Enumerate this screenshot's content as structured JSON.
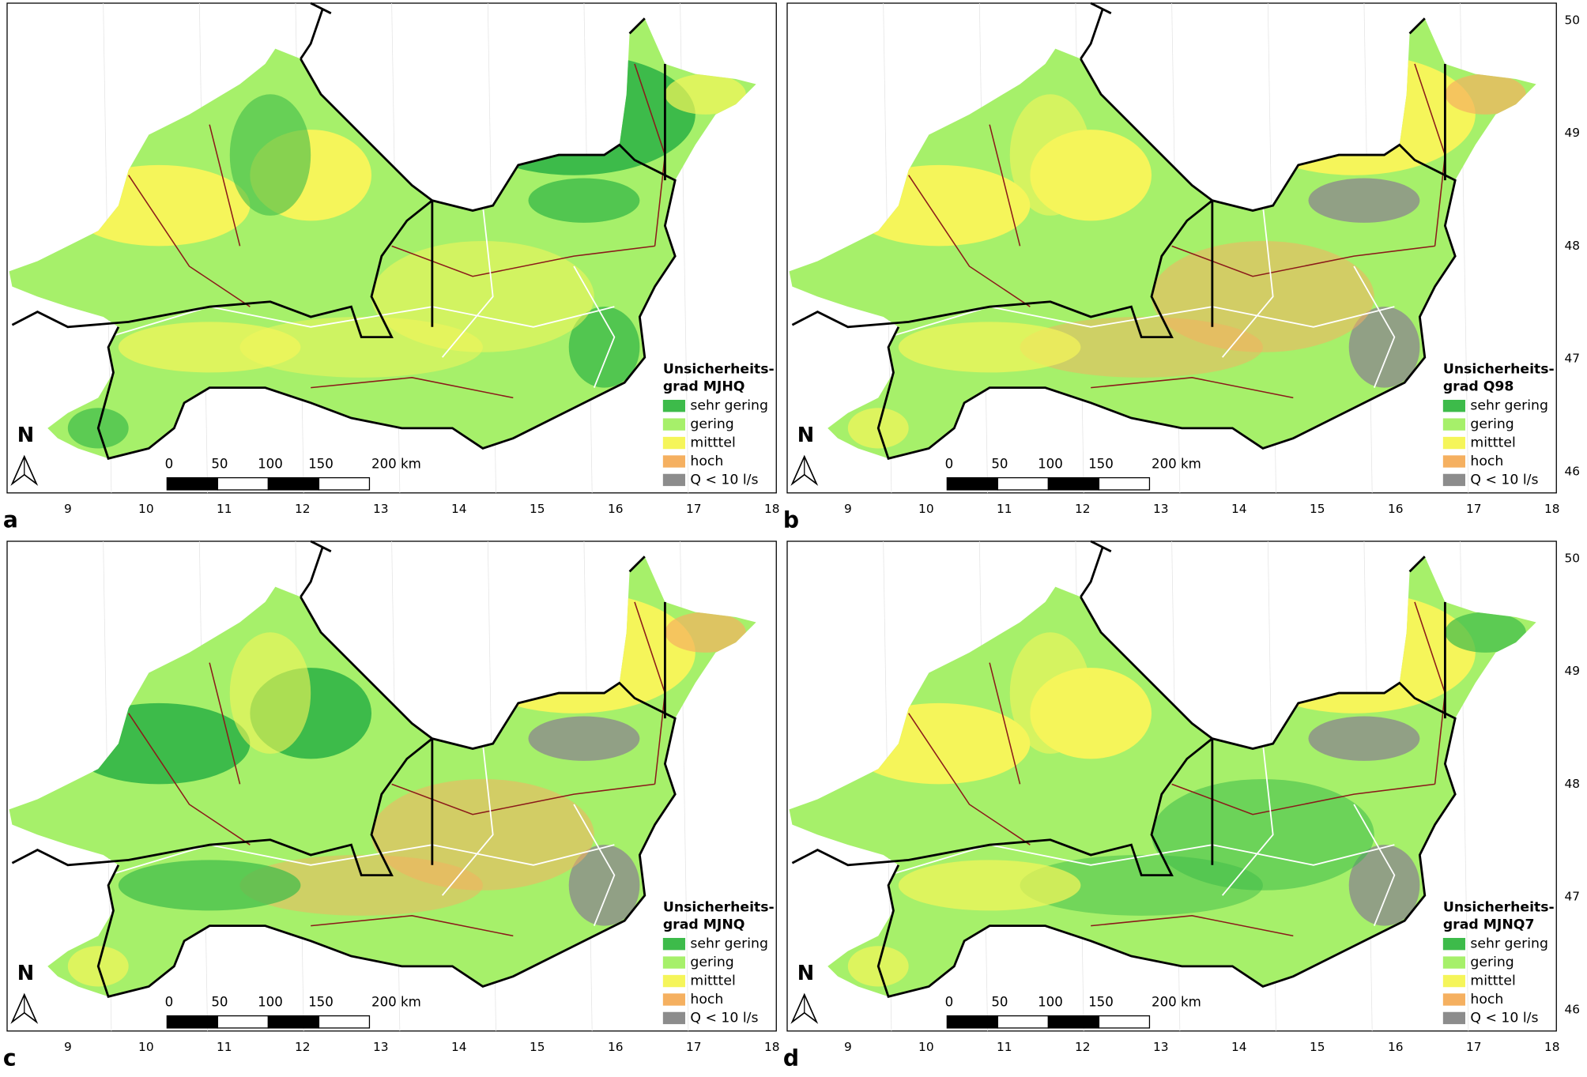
{
  "panels": [
    {
      "letter": "a",
      "legend_title": [
        "Unsicherheits-",
        "grad MJHQ"
      ]
    },
    {
      "letter": "b",
      "legend_title": [
        "Unsicherheits-",
        "grad Q98"
      ]
    },
    {
      "letter": "c",
      "legend_title": [
        "Unsicherheits-",
        "grad MJNQ"
      ]
    },
    {
      "letter": "d",
      "legend_title": [
        "Unsicherheits-",
        "grad MJNQ7"
      ]
    }
  ],
  "legend_items": [
    "sehr gering",
    "gering",
    "mitttel",
    "hoch",
    "Q < 10 l/s"
  ],
  "legend_colors": [
    "#3dbb4a",
    "#a6f06a",
    "#f5f55a",
    "#f5b060",
    "#8c8c8c"
  ],
  "lon_ticks": [
    9,
    10,
    11,
    12,
    13,
    14,
    15,
    16,
    17,
    18
  ],
  "lat_ticks": [
    46,
    47,
    48,
    49,
    50
  ],
  "north": "N",
  "scale_labels": [
    "0",
    "50",
    "100",
    "150",
    "200 km"
  ]
}
